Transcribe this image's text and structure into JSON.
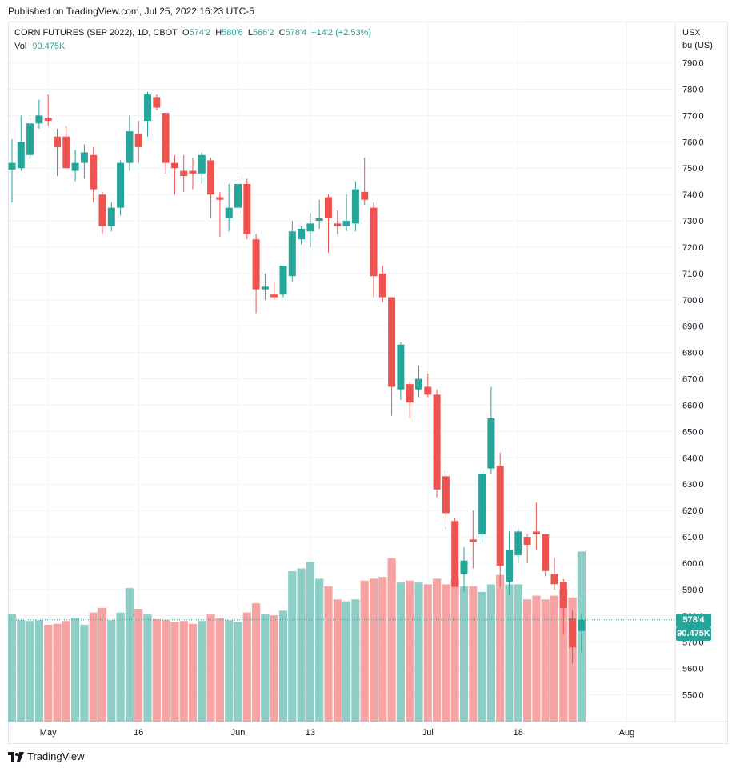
{
  "header": {
    "published": "Published on TradingView.com, Jul 25, 2022 16:23 UTC-5"
  },
  "legend": {
    "title": "CORN FUTURES (SEP 2022), 1D, CBOT",
    "o_label": "O",
    "o_value": "574'2",
    "h_label": "H",
    "h_value": "580'6",
    "l_label": "L",
    "l_value": "566'2",
    "c_label": "C",
    "c_value": "578'4",
    "change": "+14'2 (+2.53%)",
    "vol_label": "Vol",
    "vol_value": "90.475K"
  },
  "price_axis": {
    "currency": "USX",
    "unit": "bu (US)"
  },
  "last_price_tag": "578'4",
  "last_volume_tag": "90.475K",
  "footer": {
    "brand": "TradingView"
  },
  "colors": {
    "up": "#26a69a",
    "down": "#ef5350",
    "up_volume": "#8fcdc7",
    "down_volume": "#f5a3a3",
    "grid": "#f0f3fa"
  },
  "chart_data": {
    "type": "candlestick",
    "symbol": "CORN FUTURES (SEP 2022)",
    "interval": "1D",
    "exchange": "CBOT",
    "y_ticks": [
      "550'0",
      "560'0",
      "570'0",
      "580'0",
      "590'0",
      "600'0",
      "610'0",
      "620'0",
      "630'0",
      "640'0",
      "650'0",
      "660'0",
      "670'0",
      "680'0",
      "690'0",
      "700'0",
      "710'0",
      "720'0",
      "730'0",
      "740'0",
      "750'0",
      "760'0",
      "770'0",
      "780'0",
      "790'0"
    ],
    "ylim": [
      545,
      792
    ],
    "x_labels": [
      {
        "label": "May",
        "date": "2022-05-02"
      },
      {
        "label": "16",
        "date": "2022-05-16"
      },
      {
        "label": "Jun",
        "date": "2022-06-01"
      },
      {
        "label": "13",
        "date": "2022-06-13"
      },
      {
        "label": "Jul",
        "date": "2022-07-01"
      },
      {
        "label": "18",
        "date": "2022-07-18"
      },
      {
        "label": "Aug",
        "date": "2022-08-01"
      }
    ],
    "grid": true,
    "last_price": 578.5,
    "candles": [
      {
        "date": "2022-04-26",
        "o": 749.5,
        "h": 761,
        "l": 737,
        "c": 752,
        "v": 57
      },
      {
        "date": "2022-04-27",
        "o": 750,
        "h": 770,
        "l": 749,
        "c": 760,
        "v": 54
      },
      {
        "date": "2022-04-28",
        "o": 755,
        "h": 769,
        "l": 752,
        "c": 767,
        "v": 53.5
      },
      {
        "date": "2022-04-29",
        "o": 767,
        "h": 776,
        "l": 765,
        "c": 770,
        "v": 54
      },
      {
        "date": "2022-05-02",
        "o": 769,
        "h": 778,
        "l": 766,
        "c": 768,
        "v": 51.5
      },
      {
        "date": "2022-05-03",
        "o": 762,
        "h": 765,
        "l": 747,
        "c": 758,
        "v": 52
      },
      {
        "date": "2022-05-04",
        "o": 762,
        "h": 766,
        "l": 750,
        "c": 750,
        "v": 53.5
      },
      {
        "date": "2022-05-05",
        "o": 749,
        "h": 757,
        "l": 745,
        "c": 752,
        "v": 55
      },
      {
        "date": "2022-05-06",
        "o": 752,
        "h": 759,
        "l": 746,
        "c": 756,
        "v": 51.5
      },
      {
        "date": "2022-05-09",
        "o": 755,
        "h": 758,
        "l": 737,
        "c": 742,
        "v": 58
      },
      {
        "date": "2022-05-10",
        "o": 740,
        "h": 741,
        "l": 725,
        "c": 728,
        "v": 60.5
      },
      {
        "date": "2022-05-11",
        "o": 728,
        "h": 737,
        "l": 726,
        "c": 735,
        "v": 54
      },
      {
        "date": "2022-05-12",
        "o": 735,
        "h": 753,
        "l": 732,
        "c": 752,
        "v": 58
      },
      {
        "date": "2022-05-13",
        "o": 752,
        "h": 770,
        "l": 749,
        "c": 764,
        "v": 71
      },
      {
        "date": "2022-05-16",
        "o": 763,
        "h": 768,
        "l": 752,
        "c": 758,
        "v": 60
      },
      {
        "date": "2022-05-17",
        "o": 768,
        "h": 779,
        "l": 762,
        "c": 778,
        "v": 57
      },
      {
        "date": "2022-05-18",
        "o": 777,
        "h": 778,
        "l": 772,
        "c": 773,
        "v": 54.5
      },
      {
        "date": "2022-05-19",
        "o": 771,
        "h": 771,
        "l": 748,
        "c": 752,
        "v": 54
      },
      {
        "date": "2022-05-20",
        "o": 752,
        "h": 755,
        "l": 740,
        "c": 750,
        "v": 53
      },
      {
        "date": "2022-05-23",
        "o": 749,
        "h": 755,
        "l": 741,
        "c": 747,
        "v": 53.5
      },
      {
        "date": "2022-05-24",
        "o": 749,
        "h": 754,
        "l": 742,
        "c": 748,
        "v": 52
      },
      {
        "date": "2022-05-25",
        "o": 748,
        "h": 756,
        "l": 744,
        "c": 755,
        "v": 53.5
      },
      {
        "date": "2022-05-26",
        "o": 753,
        "h": 754,
        "l": 731,
        "c": 740,
        "v": 57
      },
      {
        "date": "2022-05-27",
        "o": 739,
        "h": 741,
        "l": 724,
        "c": 738,
        "v": 55
      },
      {
        "date": "2022-05-31",
        "o": 731,
        "h": 744,
        "l": 726,
        "c": 735,
        "v": 54
      },
      {
        "date": "2022-06-01",
        "o": 735,
        "h": 747,
        "l": 732,
        "c": 744,
        "v": 53
      },
      {
        "date": "2022-06-02",
        "o": 744,
        "h": 746,
        "l": 723,
        "c": 725,
        "v": 58
      },
      {
        "date": "2022-06-03",
        "o": 723,
        "h": 725,
        "l": 695,
        "c": 704,
        "v": 63
      },
      {
        "date": "2022-06-06",
        "o": 704,
        "h": 710,
        "l": 700,
        "c": 705,
        "v": 57
      },
      {
        "date": "2022-06-07",
        "o": 702,
        "h": 707,
        "l": 700,
        "c": 701,
        "v": 56.5
      },
      {
        "date": "2022-06-08",
        "o": 702,
        "h": 713,
        "l": 701,
        "c": 713,
        "v": 59
      },
      {
        "date": "2022-06-09",
        "o": 709,
        "h": 730,
        "l": 707,
        "c": 726,
        "v": 80
      },
      {
        "date": "2022-06-10",
        "o": 723,
        "h": 728,
        "l": 721,
        "c": 727,
        "v": 81.5
      },
      {
        "date": "2022-06-13",
        "o": 726,
        "h": 733,
        "l": 720,
        "c": 729,
        "v": 85
      },
      {
        "date": "2022-06-14",
        "o": 730,
        "h": 738,
        "l": 727,
        "c": 731,
        "v": 76
      },
      {
        "date": "2022-06-15",
        "o": 739,
        "h": 740,
        "l": 718,
        "c": 731,
        "v": 72
      },
      {
        "date": "2022-06-16",
        "o": 729,
        "h": 734,
        "l": 725,
        "c": 728,
        "v": 65
      },
      {
        "date": "2022-06-17",
        "o": 728,
        "h": 740,
        "l": 726,
        "c": 730,
        "v": 64
      },
      {
        "date": "2022-06-21",
        "o": 729,
        "h": 745,
        "l": 726,
        "c": 742,
        "v": 65
      },
      {
        "date": "2022-06-22",
        "o": 741,
        "h": 754,
        "l": 736,
        "c": 738,
        "v": 75
      },
      {
        "date": "2022-06-23",
        "o": 735,
        "h": 737,
        "l": 701,
        "c": 709,
        "v": 76
      },
      {
        "date": "2022-06-24",
        "o": 710,
        "h": 713,
        "l": 699,
        "c": 701,
        "v": 77
      },
      {
        "date": "2022-06-27",
        "o": 701,
        "h": 701,
        "l": 656,
        "c": 667,
        "v": 87
      },
      {
        "date": "2022-06-28",
        "o": 666,
        "h": 684,
        "l": 662,
        "c": 683,
        "v": 74
      },
      {
        "date": "2022-06-29",
        "o": 668,
        "h": 669,
        "l": 655,
        "c": 661,
        "v": 75
      },
      {
        "date": "2022-06-30",
        "o": 666,
        "h": 675,
        "l": 663,
        "c": 670,
        "v": 74
      },
      {
        "date": "2022-07-01",
        "o": 667,
        "h": 672,
        "l": 663,
        "c": 664,
        "v": 73
      },
      {
        "date": "2022-07-05",
        "o": 664,
        "h": 666,
        "l": 625,
        "c": 628,
        "v": 76
      },
      {
        "date": "2022-07-06",
        "o": 633,
        "h": 635,
        "l": 613,
        "c": 619,
        "v": 73
      },
      {
        "date": "2022-07-07",
        "o": 616,
        "h": 617,
        "l": 591,
        "c": 591,
        "v": 76
      },
      {
        "date": "2022-07-08",
        "o": 596,
        "h": 606,
        "l": 589,
        "c": 601,
        "v": 72
      },
      {
        "date": "2022-07-11",
        "o": 609,
        "h": 620,
        "l": 598,
        "c": 608,
        "v": 72
      },
      {
        "date": "2022-07-12",
        "o": 611,
        "h": 635,
        "l": 608,
        "c": 634,
        "v": 69
      },
      {
        "date": "2022-07-13",
        "o": 636,
        "h": 667,
        "l": 634,
        "c": 655,
        "v": 73
      },
      {
        "date": "2022-07-14",
        "o": 637,
        "h": 642,
        "l": 591,
        "c": 599,
        "v": 78
      },
      {
        "date": "2022-07-15",
        "o": 593,
        "h": 612,
        "l": 588,
        "c": 605,
        "v": 73
      },
      {
        "date": "2022-07-18",
        "o": 603,
        "h": 613,
        "l": 600,
        "c": 612,
        "v": 73
      },
      {
        "date": "2022-07-19",
        "o": 610,
        "h": 611,
        "l": 600,
        "c": 607,
        "v": 65
      },
      {
        "date": "2022-07-20",
        "o": 612,
        "h": 623,
        "l": 605,
        "c": 611,
        "v": 67
      },
      {
        "date": "2022-07-21",
        "o": 611,
        "h": 611,
        "l": 595,
        "c": 597,
        "v": 65
      },
      {
        "date": "2022-07-22",
        "o": 596,
        "h": 602,
        "l": 590,
        "c": 592,
        "v": 67
      },
      {
        "date": "2022-07-25a",
        "o": 593,
        "h": 594,
        "l": 573,
        "c": 583,
        "v": 70
      },
      {
        "date": "2022-07-25b",
        "o": 579,
        "h": 582,
        "l": 562,
        "c": 568,
        "v": 66
      },
      {
        "date": "2022-07-25",
        "o": 574.25,
        "h": 580.75,
        "l": 566.25,
        "c": 578.5,
        "v": 90.475
      }
    ]
  }
}
